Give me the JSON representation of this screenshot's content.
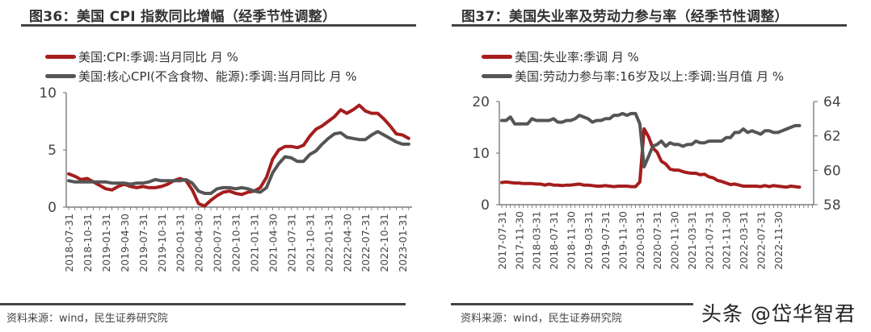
{
  "left": {
    "title": "图36：美国 CPI 指数同比增幅（经季节性调整）",
    "source": "资料来源：wind，民生证券研究院"
  },
  "right": {
    "title": "图37：美国失业率及劳动力参与率（经季节性调整）",
    "source": "资料来源：wind，民生证券研究院"
  },
  "watermark": "头条 @岱华智君",
  "colors": {
    "red": "#a51d1d",
    "gray": "#555555"
  },
  "chart_data": [
    {
      "type": "line",
      "title": "图36：美国 CPI 指数同比增幅（经季节性调整）",
      "x_start": "2018-07-31",
      "x_frequency": "monthly",
      "tick_labels": [
        "2018-07-31",
        "2018-10-31",
        "2019-01-31",
        "2019-04-30",
        "2019-07-31",
        "2019-10-31",
        "2020-01-31",
        "2020-04-30",
        "2020-07-31",
        "2020-10-31",
        "2021-01-31",
        "2021-04-30",
        "2021-07-31",
        "2021-10-31",
        "2022-01-31",
        "2022-04-30",
        "2022-07-31",
        "2022-10-31",
        "2023-01-31"
      ],
      "ylim": [
        0,
        10
      ],
      "yticks": [
        0,
        5,
        10
      ],
      "grid": false,
      "legend_placement": "top-left",
      "series": [
        {
          "name": "美国:CPI:季调:当月同比 月 %",
          "color": "#a51d1d",
          "values": [
            2.9,
            2.7,
            2.4,
            2.5,
            2.2,
            1.9,
            1.6,
            1.5,
            1.8,
            2.0,
            1.8,
            1.7,
            1.8,
            1.7,
            1.7,
            1.8,
            2.0,
            2.3,
            2.5,
            2.3,
            1.5,
            0.3,
            0.1,
            0.6,
            1.0,
            1.3,
            1.4,
            1.2,
            1.1,
            1.3,
            1.4,
            1.7,
            2.6,
            4.2,
            5.0,
            5.3,
            5.3,
            5.2,
            5.4,
            6.2,
            6.8,
            7.1,
            7.5,
            7.9,
            8.5,
            8.2,
            8.5,
            8.9,
            8.4,
            8.2,
            8.2,
            7.7,
            7.1,
            6.4,
            6.3,
            6.0
          ]
        },
        {
          "name": "美国:核心CPI(不含食物、能源):季调:当月同比 月 %",
          "color": "#555555",
          "values": [
            2.3,
            2.2,
            2.2,
            2.2,
            2.2,
            2.2,
            2.2,
            2.1,
            2.1,
            2.1,
            2.0,
            2.1,
            2.1,
            2.2,
            2.4,
            2.3,
            2.3,
            2.3,
            2.3,
            2.4,
            2.1,
            1.4,
            1.2,
            1.2,
            1.6,
            1.7,
            1.7,
            1.6,
            1.7,
            1.6,
            1.4,
            1.3,
            1.7,
            3.0,
            3.8,
            4.4,
            4.3,
            4.0,
            4.0,
            4.6,
            4.9,
            5.5,
            6.0,
            6.4,
            6.5,
            6.1,
            6.0,
            5.9,
            5.9,
            6.3,
            6.6,
            6.3,
            6.0,
            5.7,
            5.5,
            5.5
          ]
        }
      ]
    },
    {
      "type": "line",
      "title": "图37：美国失业率及劳动力参与率（经季节性调整）",
      "x_start": "2017-07-31",
      "x_frequency": "monthly",
      "tick_labels": [
        "2017-07-31",
        "2017-11-30",
        "2018-03-31",
        "2018-07-31",
        "2018-11-30",
        "2019-03-31",
        "2019-07-31",
        "2019-11-30",
        "2020-03-31",
        "2020-07-31",
        "2020-11-30",
        "2021-03-31",
        "2021-07-31",
        "2021-11-30",
        "2022-03-31",
        "2022-07-31",
        "2022-11-30"
      ],
      "ylim": [
        0,
        20
      ],
      "yticks": [
        0,
        10,
        20
      ],
      "y2lim": [
        58,
        64
      ],
      "y2ticks": [
        58,
        60,
        62,
        64
      ],
      "grid": false,
      "legend_placement": "top-left",
      "series": [
        {
          "name": "美国:失业率:季调 月 %",
          "axis": "left",
          "color": "#a51d1d",
          "values": [
            4.3,
            4.4,
            4.3,
            4.2,
            4.2,
            4.1,
            4.1,
            4.1,
            4.0,
            4.0,
            3.8,
            4.0,
            3.8,
            3.8,
            3.7,
            3.8,
            3.8,
            3.9,
            4.0,
            3.8,
            3.8,
            3.7,
            3.6,
            3.6,
            3.7,
            3.6,
            3.5,
            3.6,
            3.6,
            3.6,
            3.5,
            3.5,
            4.4,
            14.7,
            13.2,
            11.0,
            10.2,
            8.4,
            7.9,
            6.9,
            6.7,
            6.7,
            6.4,
            6.2,
            6.1,
            6.1,
            5.8,
            5.9,
            5.4,
            5.2,
            4.7,
            4.5,
            4.2,
            3.9,
            4.0,
            3.8,
            3.6,
            3.6,
            3.6,
            3.6,
            3.5,
            3.7,
            3.5,
            3.7,
            3.6,
            3.5,
            3.4,
            3.6,
            3.5,
            3.4
          ]
        },
        {
          "name": "美国:劳动力参与率:16岁及以上:季调:当月值 月 %",
          "axis": "right",
          "color": "#555555",
          "values": [
            62.9,
            62.9,
            63.1,
            62.7,
            62.7,
            62.7,
            62.7,
            63.0,
            62.9,
            62.9,
            62.9,
            62.9,
            63.0,
            62.8,
            62.8,
            62.9,
            62.9,
            63.0,
            63.2,
            63.1,
            63.0,
            62.8,
            62.9,
            62.9,
            63.0,
            63.0,
            63.2,
            63.2,
            63.3,
            63.2,
            63.3,
            63.3,
            62.7,
            60.2,
            60.8,
            61.4,
            61.5,
            61.7,
            61.4,
            61.6,
            61.5,
            61.5,
            61.4,
            61.5,
            61.5,
            61.7,
            61.6,
            61.6,
            61.7,
            61.7,
            61.7,
            61.7,
            61.9,
            61.9,
            62.2,
            62.2,
            62.4,
            62.2,
            62.3,
            62.2,
            62.1,
            62.3,
            62.3,
            62.2,
            62.2,
            62.3,
            62.4,
            62.5,
            62.6,
            62.6
          ]
        }
      ]
    }
  ]
}
